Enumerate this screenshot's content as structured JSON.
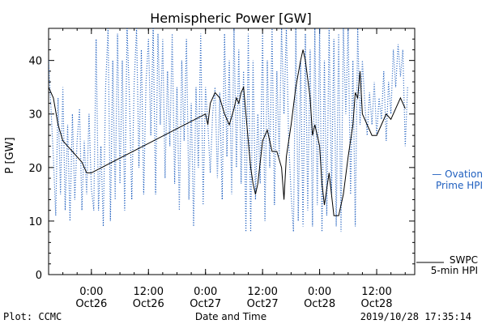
{
  "chart_data": {
    "type": "line",
    "title": "Hemispheric Power [GW]",
    "xlabel": "Date and Time",
    "ylabel": "P [GW]",
    "ylim": [
      0,
      46
    ],
    "xlim": [
      "2019-10-25 15:00",
      "2019-10-28 20:00"
    ],
    "y_ticks": [
      0,
      10,
      20,
      30,
      40
    ],
    "x_ticks": [
      {
        "t": "2019-10-26 00:00",
        "label1": "0:00",
        "label2": "Oct26"
      },
      {
        "t": "2019-10-26 12:00",
        "label1": "12:00",
        "label2": "Oct26"
      },
      {
        "t": "2019-10-27 00:00",
        "label1": "0:00",
        "label2": "Oct27"
      },
      {
        "t": "2019-10-27 12:00",
        "label1": "12:00",
        "label2": "Oct27"
      },
      {
        "t": "2019-10-28 00:00",
        "label1": "0:00",
        "label2": "Oct28"
      },
      {
        "t": "2019-10-28 12:00",
        "label1": "12:00",
        "label2": "Oct28"
      }
    ],
    "grid": false,
    "series": [
      {
        "name": "Ovation Prime HPI",
        "legend_line1": "— Ovation",
        "legend_line2": "Prime HPI",
        "style": "dotted",
        "color": "#1f5fbf",
        "points": [
          [
            "2019-10-25 15:00",
            40
          ],
          [
            "2019-10-25 16:00",
            22
          ],
          [
            "2019-10-25 16:30",
            11
          ],
          [
            "2019-10-25 17:00",
            33
          ],
          [
            "2019-10-25 17:30",
            15
          ],
          [
            "2019-10-25 18:00",
            35
          ],
          [
            "2019-10-25 18:30",
            12
          ],
          [
            "2019-10-25 19:00",
            28
          ],
          [
            "2019-10-25 19:30",
            10
          ],
          [
            "2019-10-25 20:00",
            30
          ],
          [
            "2019-10-25 20:30",
            14
          ],
          [
            "2019-10-25 21:00",
            25
          ],
          [
            "2019-10-25 21:30",
            31
          ],
          [
            "2019-10-25 22:00",
            12
          ],
          [
            "2019-10-25 22:30",
            25
          ],
          [
            "2019-10-25 23:00",
            15
          ],
          [
            "2019-10-25 23:30",
            30
          ],
          [
            "2019-10-26 00:00",
            16
          ],
          [
            "2019-10-26 00:30",
            12
          ],
          [
            "2019-10-26 01:00",
            44
          ],
          [
            "2019-10-26 01:30",
            12
          ],
          [
            "2019-10-26 02:00",
            24
          ],
          [
            "2019-10-26 02:30",
            9
          ],
          [
            "2019-10-26 03:00",
            35
          ],
          [
            "2019-10-26 03:30",
            46
          ],
          [
            "2019-10-26 04:00",
            10
          ],
          [
            "2019-10-26 04:30",
            40
          ],
          [
            "2019-10-26 05:00",
            14
          ],
          [
            "2019-10-26 05:30",
            45
          ],
          [
            "2019-10-26 06:00",
            17
          ],
          [
            "2019-10-26 06:30",
            40
          ],
          [
            "2019-10-26 07:00",
            12
          ],
          [
            "2019-10-26 07:30",
            46
          ],
          [
            "2019-10-26 08:00",
            33
          ],
          [
            "2019-10-26 08:30",
            14
          ],
          [
            "2019-10-26 09:00",
            36
          ],
          [
            "2019-10-26 09:30",
            46
          ],
          [
            "2019-10-26 10:00",
            20
          ],
          [
            "2019-10-26 10:30",
            42
          ],
          [
            "2019-10-26 11:00",
            15
          ],
          [
            "2019-10-26 11:30",
            36
          ],
          [
            "2019-10-26 12:00",
            44
          ],
          [
            "2019-10-26 12:30",
            26
          ],
          [
            "2019-10-26 13:00",
            46
          ],
          [
            "2019-10-26 13:30",
            15
          ],
          [
            "2019-10-26 14:00",
            45
          ],
          [
            "2019-10-26 14:30",
            28
          ],
          [
            "2019-10-26 15:00",
            44
          ],
          [
            "2019-10-26 15:30",
            18
          ],
          [
            "2019-10-26 16:00",
            38
          ],
          [
            "2019-10-26 16:30",
            24
          ],
          [
            "2019-10-26 17:00",
            45
          ],
          [
            "2019-10-26 17:30",
            17
          ],
          [
            "2019-10-26 18:00",
            35
          ],
          [
            "2019-10-26 18:30",
            12
          ],
          [
            "2019-10-26 19:00",
            40
          ],
          [
            "2019-10-26 19:30",
            25
          ],
          [
            "2019-10-26 20:00",
            44
          ],
          [
            "2019-10-26 20:30",
            14
          ],
          [
            "2019-10-26 21:00",
            32
          ],
          [
            "2019-10-26 21:30",
            9
          ],
          [
            "2019-10-26 22:00",
            35
          ],
          [
            "2019-10-26 22:30",
            20
          ],
          [
            "2019-10-26 23:00",
            45
          ],
          [
            "2019-10-26 23:30",
            13
          ],
          [
            "2019-10-27 00:00",
            35
          ],
          [
            "2019-10-27 00:30",
            28
          ],
          [
            "2019-10-27 01:00",
            19
          ],
          [
            "2019-10-27 01:30",
            30
          ],
          [
            "2019-10-27 02:00",
            35
          ],
          [
            "2019-10-27 02:30",
            18
          ],
          [
            "2019-10-27 03:00",
            34
          ],
          [
            "2019-10-27 03:30",
            14
          ],
          [
            "2019-10-27 04:00",
            45
          ],
          [
            "2019-10-27 04:30",
            22
          ],
          [
            "2019-10-27 05:00",
            40
          ],
          [
            "2019-10-27 05:30",
            15
          ],
          [
            "2019-10-27 06:00",
            46
          ],
          [
            "2019-10-27 06:30",
            20
          ],
          [
            "2019-10-27 07:00",
            42
          ],
          [
            "2019-10-27 07:30",
            17
          ],
          [
            "2019-10-27 08:00",
            38
          ],
          [
            "2019-10-27 08:30",
            8
          ],
          [
            "2019-10-27 09:00",
            45
          ],
          [
            "2019-10-27 09:30",
            8
          ],
          [
            "2019-10-27 10:00",
            40
          ],
          [
            "2019-10-27 10:30",
            14
          ],
          [
            "2019-10-27 11:00",
            30
          ],
          [
            "2019-10-27 11:30",
            17
          ],
          [
            "2019-10-27 12:00",
            45
          ],
          [
            "2019-10-27 12:30",
            10
          ],
          [
            "2019-10-27 13:00",
            40
          ],
          [
            "2019-10-27 13:30",
            20
          ],
          [
            "2019-10-27 14:00",
            46
          ],
          [
            "2019-10-27 14:30",
            13
          ],
          [
            "2019-10-27 15:00",
            38
          ],
          [
            "2019-10-27 15:30",
            22
          ],
          [
            "2019-10-27 16:00",
            46
          ],
          [
            "2019-10-27 16:30",
            30
          ],
          [
            "2019-10-27 17:00",
            46
          ],
          [
            "2019-10-27 17:30",
            25
          ],
          [
            "2019-10-27 18:00",
            15
          ],
          [
            "2019-10-27 18:30",
            8
          ],
          [
            "2019-10-27 19:00",
            46
          ],
          [
            "2019-10-27 19:30",
            10
          ],
          [
            "2019-10-27 20:00",
            40
          ],
          [
            "2019-10-27 20:30",
            9
          ],
          [
            "2019-10-27 21:00",
            45
          ],
          [
            "2019-10-27 21:30",
            12
          ],
          [
            "2019-10-27 22:00",
            42
          ],
          [
            "2019-10-27 22:30",
            9
          ],
          [
            "2019-10-27 23:00",
            46
          ],
          [
            "2019-10-27 23:30",
            13
          ],
          [
            "2019-10-28 00:00",
            46
          ],
          [
            "2019-10-28 00:30",
            8
          ],
          [
            "2019-10-28 01:00",
            40
          ],
          [
            "2019-10-28 01:30",
            11
          ],
          [
            "2019-10-28 02:00",
            46
          ],
          [
            "2019-10-28 02:30",
            15
          ],
          [
            "2019-10-28 03:00",
            44
          ],
          [
            "2019-10-28 03:30",
            9
          ],
          [
            "2019-10-28 04:00",
            45
          ],
          [
            "2019-10-28 04:30",
            8
          ],
          [
            "2019-10-28 05:00",
            46
          ],
          [
            "2019-10-28 05:30",
            30
          ],
          [
            "2019-10-28 06:00",
            46
          ],
          [
            "2019-10-28 06:30",
            15
          ],
          [
            "2019-10-28 07:00",
            40
          ],
          [
            "2019-10-28 07:30",
            9
          ],
          [
            "2019-10-28 08:00",
            46
          ],
          [
            "2019-10-28 08:30",
            28
          ],
          [
            "2019-10-28 09:00",
            40
          ],
          [
            "2019-10-28 09:30",
            32
          ],
          [
            "2019-10-28 10:00",
            26
          ],
          [
            "2019-10-28 10:30",
            34
          ],
          [
            "2019-10-28 11:00",
            28
          ],
          [
            "2019-10-28 11:30",
            36
          ],
          [
            "2019-10-28 12:00",
            26
          ],
          [
            "2019-10-28 12:30",
            33
          ],
          [
            "2019-10-28 13:00",
            29
          ],
          [
            "2019-10-28 13:30",
            38
          ],
          [
            "2019-10-28 14:00",
            25
          ],
          [
            "2019-10-28 14:30",
            36
          ],
          [
            "2019-10-28 15:00",
            30
          ],
          [
            "2019-10-28 15:30",
            42
          ],
          [
            "2019-10-28 16:00",
            35
          ],
          [
            "2019-10-28 16:30",
            43
          ],
          [
            "2019-10-28 17:00",
            37
          ],
          [
            "2019-10-28 17:30",
            42
          ],
          [
            "2019-10-28 18:00",
            24
          ],
          [
            "2019-10-28 18:30",
            35
          ]
        ]
      },
      {
        "name": "SWPC 5-min HPI",
        "legend_line1": "SWPC",
        "legend_line2": "5-min HPI",
        "style": "solid",
        "color": "#000000",
        "points": [
          [
            "2019-10-25 15:00",
            35
          ],
          [
            "2019-10-25 16:00",
            33
          ],
          [
            "2019-10-25 17:00",
            28
          ],
          [
            "2019-10-25 18:00",
            25
          ],
          [
            "2019-10-25 19:00",
            24
          ],
          [
            "2019-10-25 20:00",
            23
          ],
          [
            "2019-10-25 21:00",
            22
          ],
          [
            "2019-10-25 22:00",
            21
          ],
          [
            "2019-10-25 23:00",
            19
          ],
          [
            "2019-10-26 00:00",
            19
          ],
          [
            "2019-10-27 00:00",
            30
          ],
          [
            "2019-10-27 00:30",
            28
          ],
          [
            "2019-10-27 01:00",
            32
          ],
          [
            "2019-10-27 02:00",
            34
          ],
          [
            "2019-10-27 03:00",
            33
          ],
          [
            "2019-10-27 04:00",
            30
          ],
          [
            "2019-10-27 05:00",
            28
          ],
          [
            "2019-10-27 06:00",
            31
          ],
          [
            "2019-10-27 06:30",
            33
          ],
          [
            "2019-10-27 07:00",
            32
          ],
          [
            "2019-10-27 07:30",
            34
          ],
          [
            "2019-10-27 08:00",
            35
          ],
          [
            "2019-10-27 09:00",
            25
          ],
          [
            "2019-10-27 09:30",
            20
          ],
          [
            "2019-10-27 10:00",
            17
          ],
          [
            "2019-10-27 10:30",
            15
          ],
          [
            "2019-10-27 11:00",
            17
          ],
          [
            "2019-10-27 12:00",
            25
          ],
          [
            "2019-10-27 13:00",
            27
          ],
          [
            "2019-10-27 14:00",
            23
          ],
          [
            "2019-10-27 15:00",
            23
          ],
          [
            "2019-10-27 16:00",
            20
          ],
          [
            "2019-10-27 16:30",
            14
          ],
          [
            "2019-10-27 17:00",
            22
          ],
          [
            "2019-10-27 18:00",
            28
          ],
          [
            "2019-10-27 19:00",
            35
          ],
          [
            "2019-10-27 20:00",
            40
          ],
          [
            "2019-10-27 20:30",
            42
          ],
          [
            "2019-10-27 21:00",
            40
          ],
          [
            "2019-10-27 22:00",
            33
          ],
          [
            "2019-10-27 22:30",
            26
          ],
          [
            "2019-10-27 23:00",
            28
          ],
          [
            "2019-10-28 00:00",
            24
          ],
          [
            "2019-10-28 00:30",
            17
          ],
          [
            "2019-10-28 01:00",
            13
          ],
          [
            "2019-10-28 02:00",
            19
          ],
          [
            "2019-10-28 03:00",
            11
          ],
          [
            "2019-10-28 04:00",
            11
          ],
          [
            "2019-10-28 05:00",
            15
          ],
          [
            "2019-10-28 06:00",
            22
          ],
          [
            "2019-10-28 07:00",
            28
          ],
          [
            "2019-10-28 07:30",
            34
          ],
          [
            "2019-10-28 08:00",
            33
          ],
          [
            "2019-10-28 08:30",
            38
          ],
          [
            "2019-10-28 09:00",
            30
          ],
          [
            "2019-10-28 10:00",
            28
          ],
          [
            "2019-10-28 11:00",
            26
          ],
          [
            "2019-10-28 12:00",
            26
          ],
          [
            "2019-10-28 13:00",
            28
          ],
          [
            "2019-10-28 14:00",
            30
          ],
          [
            "2019-10-28 15:00",
            29
          ],
          [
            "2019-10-28 16:00",
            31
          ],
          [
            "2019-10-28 17:00",
            33
          ],
          [
            "2019-10-28 18:00",
            31
          ]
        ]
      }
    ]
  },
  "footer": {
    "plot_credit": "Plot: CCMC",
    "timestamp": "2019/10/28 17:35:14"
  },
  "colors": {
    "ovation": "#1f5fbf",
    "swpc": "#000000",
    "axis": "#000000"
  }
}
